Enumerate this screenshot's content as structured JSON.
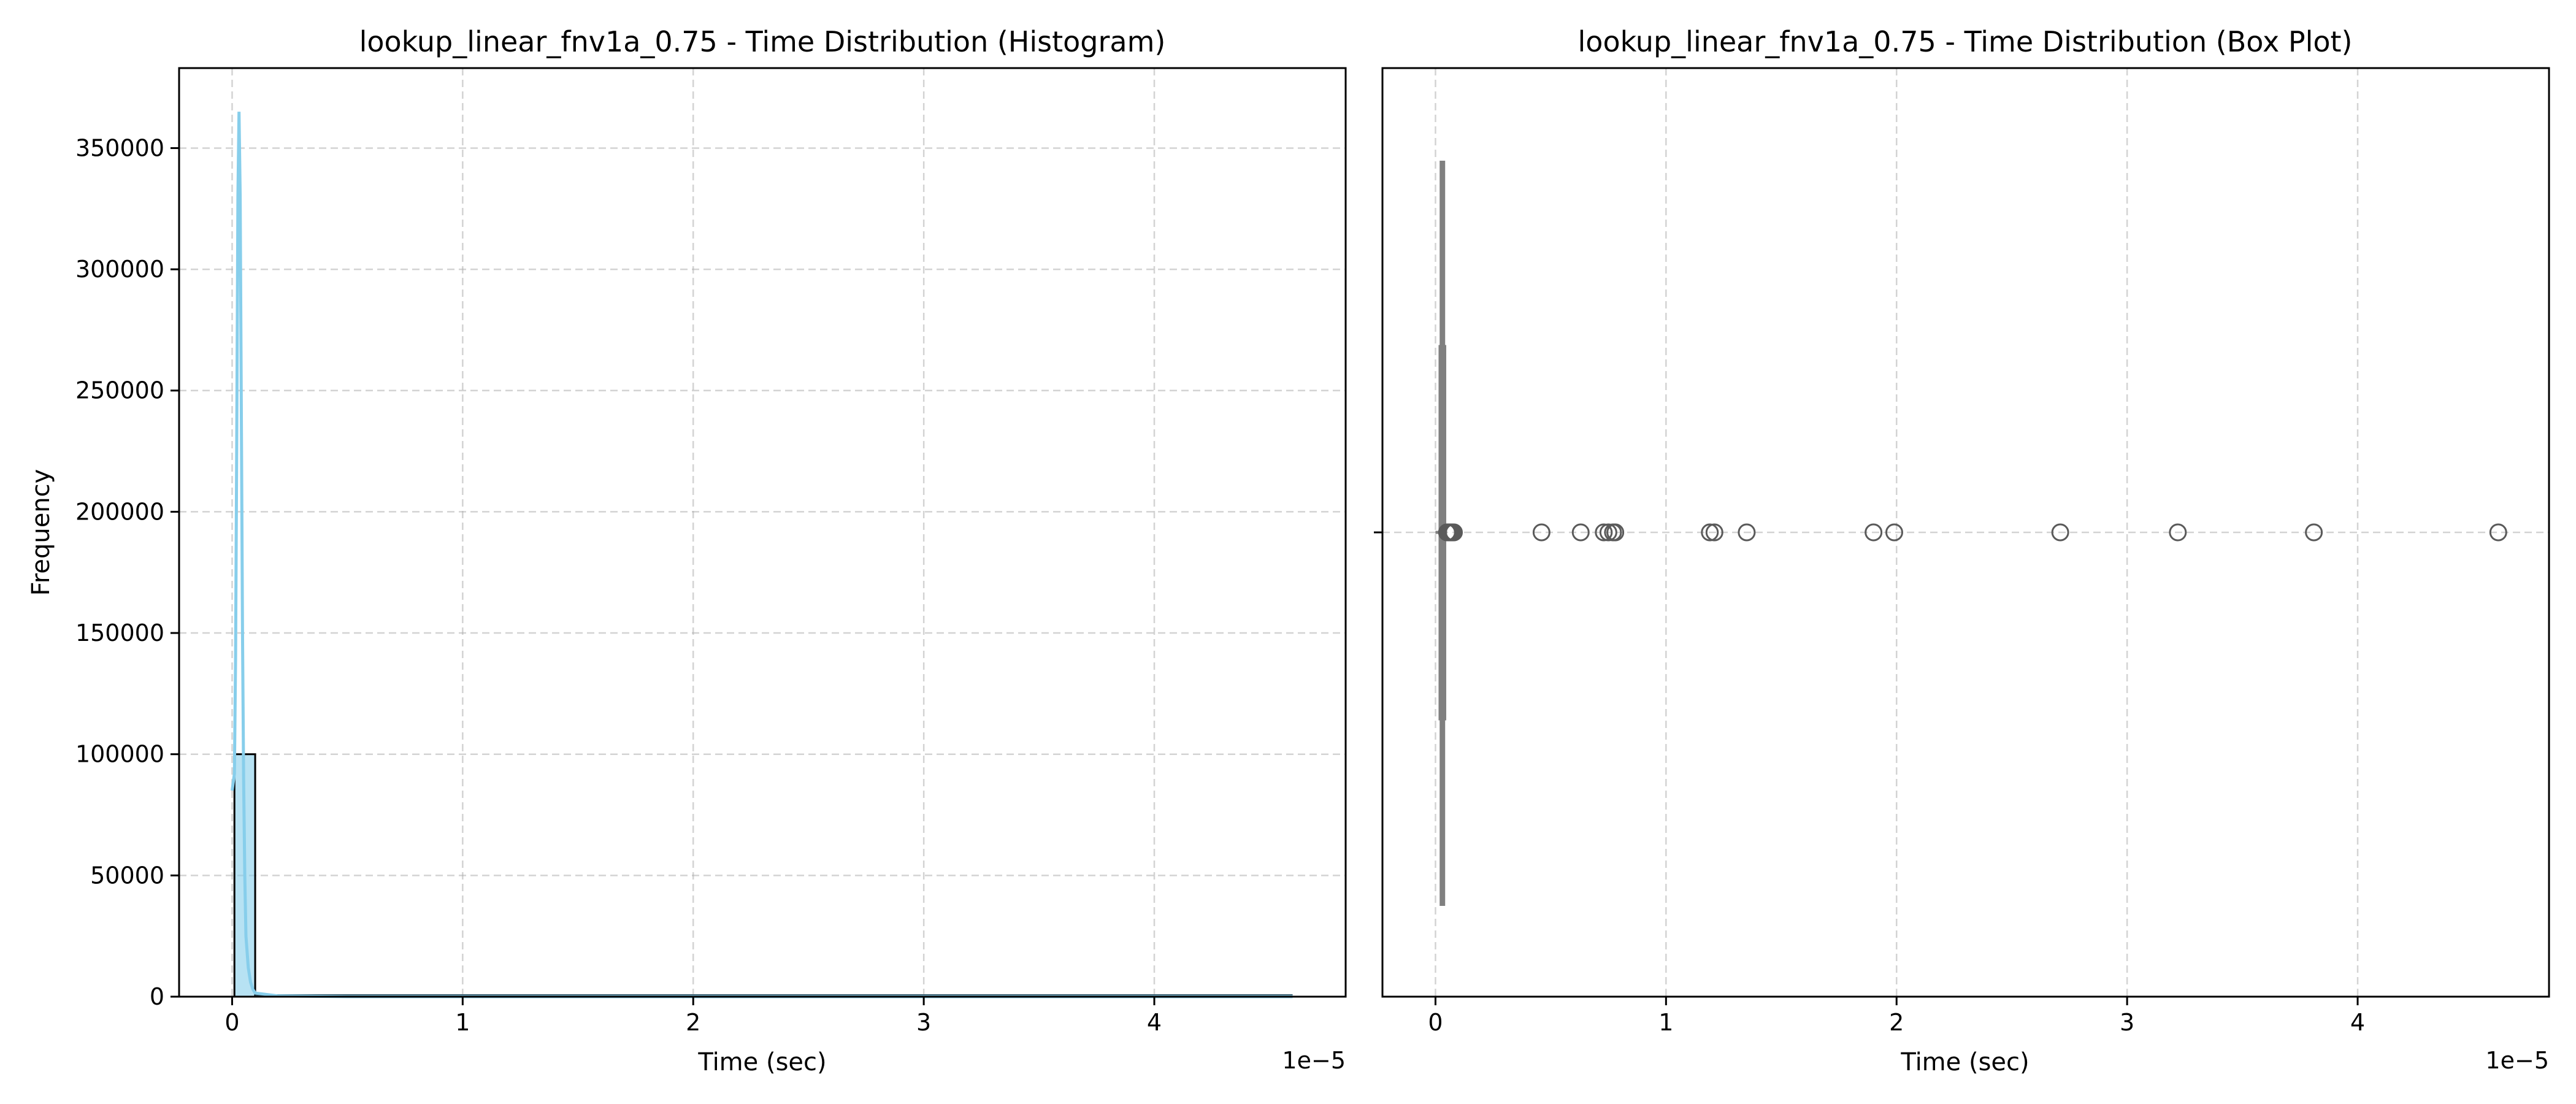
{
  "chart_data": [
    {
      "type": "histogram",
      "title": "lookup_linear_fnv1a_0.75 - Time Distribution (Histogram)",
      "xlabel": "Time (sec)",
      "ylabel": "Frequency",
      "x_offset_label": "1e−5",
      "x_scale": 1e-05,
      "xlim": [
        -0.23,
        4.83
      ],
      "ylim": [
        0,
        383000
      ],
      "xticks": [
        0,
        1,
        2,
        3,
        4
      ],
      "xtick_labels": [
        "0",
        "1",
        "2",
        "3",
        "4"
      ],
      "yticks": [
        0,
        50000,
        100000,
        150000,
        200000,
        250000,
        300000,
        350000
      ],
      "ytick_labels": [
        "0",
        "50000",
        "100000",
        "150000",
        "200000",
        "250000",
        "300000",
        "350000"
      ],
      "grid": true,
      "bar_color": "#87ceeb",
      "bar_edge_color": "#000000",
      "kde_color": "#87ceeb",
      "bins": [
        {
          "x0": 0.01,
          "x1": 0.1,
          "count": 100000
        }
      ],
      "kde": {
        "x": [
          0.0,
          0.01,
          0.015,
          0.02,
          0.025,
          0.03,
          0.035,
          0.04,
          0.045,
          0.05,
          0.055,
          0.06,
          0.07,
          0.08,
          0.09,
          0.1,
          0.2,
          0.5,
          1.0,
          2.0,
          3.0,
          4.0,
          4.6
        ],
        "y": [
          85000,
          92000,
          140000,
          230000,
          330000,
          365000,
          330000,
          240000,
          150000,
          90000,
          50000,
          25000,
          12000,
          6000,
          3000,
          1500,
          300,
          0,
          0,
          0,
          0,
          0,
          0
        ]
      }
    },
    {
      "type": "box",
      "title": "lookup_linear_fnv1a_0.75 - Time Distribution (Box Plot)",
      "xlabel": "Time (sec)",
      "x_offset_label": "1e−5",
      "x_scale": 1e-05,
      "xlim": [
        -0.23,
        4.83
      ],
      "xticks": [
        0,
        1,
        2,
        3,
        4
      ],
      "xtick_labels": [
        "0",
        "1",
        "2",
        "3",
        "4"
      ],
      "grid": true,
      "box_color": "#808080",
      "whisker_low": 0.0,
      "q1": 0.02,
      "median": 0.03,
      "q3": 0.04,
      "whisker_high": 0.05,
      "outliers": [
        0.05,
        0.055,
        0.06,
        0.065,
        0.07,
        0.075,
        0.08,
        0.46,
        0.63,
        0.73,
        0.75,
        0.77,
        0.78,
        1.19,
        1.21,
        1.35,
        1.9,
        1.99,
        2.71,
        3.22,
        3.81,
        4.61
      ]
    }
  ]
}
